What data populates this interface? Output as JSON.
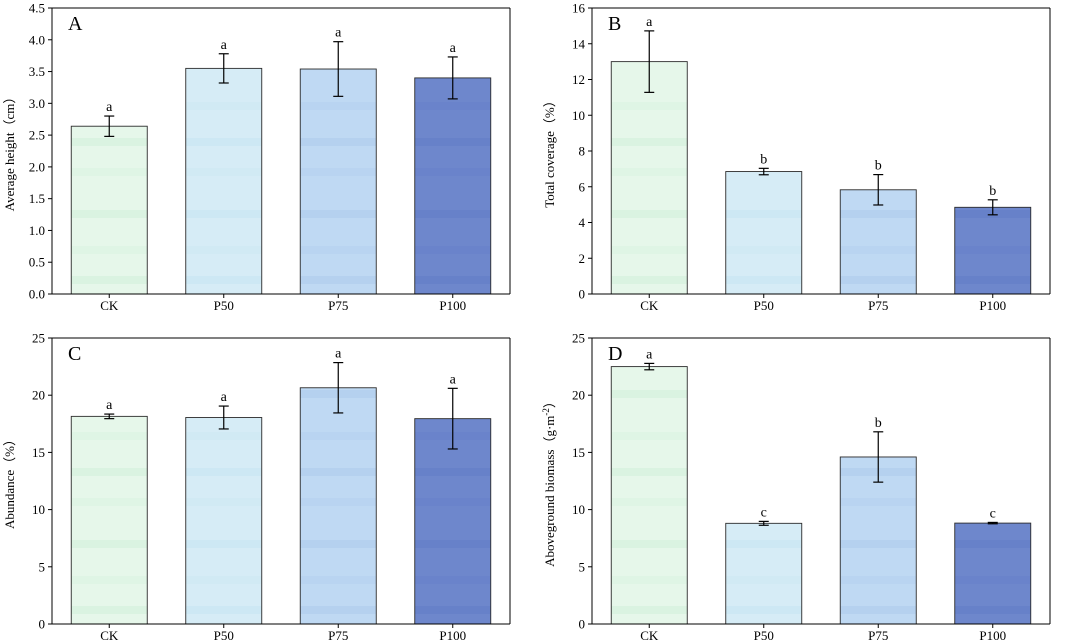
{
  "colors": {
    "bar_fills": [
      "#e6f7ea",
      "#d6ecf6",
      "#bfd9f3",
      "#6e87cc"
    ],
    "bar_bands": [
      "#cdeed7",
      "#c3e4f1",
      "#a9c8ea",
      "#6079c6"
    ],
    "axis": "#000000"
  },
  "chart_data": [
    {
      "type": "bar",
      "panel_label": "A",
      "categories": [
        "CK",
        "P50",
        "P75",
        "P100"
      ],
      "values": [
        2.64,
        3.55,
        3.54,
        3.4
      ],
      "errors": [
        0.16,
        0.23,
        0.43,
        0.33
      ],
      "significance": [
        "a",
        "a",
        "a",
        "a"
      ],
      "ylabel": "Average height（cm）",
      "ylabel_sup": "",
      "ylim": [
        0,
        4.5
      ],
      "yticks": [
        "0.0",
        "0.5",
        "1.0",
        "1.5",
        "2.0",
        "2.5",
        "3.0",
        "3.5",
        "4.0",
        "4.5"
      ]
    },
    {
      "type": "bar",
      "panel_label": "B",
      "categories": [
        "CK",
        "P50",
        "P75",
        "P100"
      ],
      "values": [
        13.0,
        6.85,
        5.83,
        4.85
      ],
      "errors": [
        1.72,
        0.18,
        0.85,
        0.42
      ],
      "significance": [
        "a",
        "b",
        "b",
        "b"
      ],
      "ylabel": "Total coverage（%）",
      "ylabel_sup": "",
      "ylim": [
        0,
        16
      ],
      "yticks": [
        "0",
        "2",
        "4",
        "6",
        "8",
        "10",
        "12",
        "14",
        "16"
      ]
    },
    {
      "type": "bar",
      "panel_label": "C",
      "categories": [
        "CK",
        "P50",
        "P75",
        "P100"
      ],
      "values": [
        18.15,
        18.05,
        20.65,
        17.95
      ],
      "errors": [
        0.2,
        1.0,
        2.2,
        2.65
      ],
      "significance": [
        "a",
        "a",
        "a",
        "a"
      ],
      "ylabel": "Abundance（%）",
      "ylabel_sup": "",
      "ylim": [
        0,
        25
      ],
      "yticks": [
        "0",
        "5",
        "10",
        "15",
        "20",
        "25"
      ]
    },
    {
      "type": "bar",
      "panel_label": "D",
      "categories": [
        "CK",
        "P50",
        "P75",
        "P100"
      ],
      "values": [
        22.5,
        8.8,
        14.6,
        8.82
      ],
      "errors": [
        0.28,
        0.17,
        2.2,
        0.06
      ],
      "significance": [
        "a",
        "c",
        "b",
        "c"
      ],
      "ylabel": "Aboveground biomass（g·m",
      "ylabel_sup": "-2",
      "ylabel_end": "）",
      "ylim": [
        0,
        25
      ],
      "yticks": [
        "0",
        "5",
        "10",
        "15",
        "20",
        "25"
      ]
    }
  ]
}
